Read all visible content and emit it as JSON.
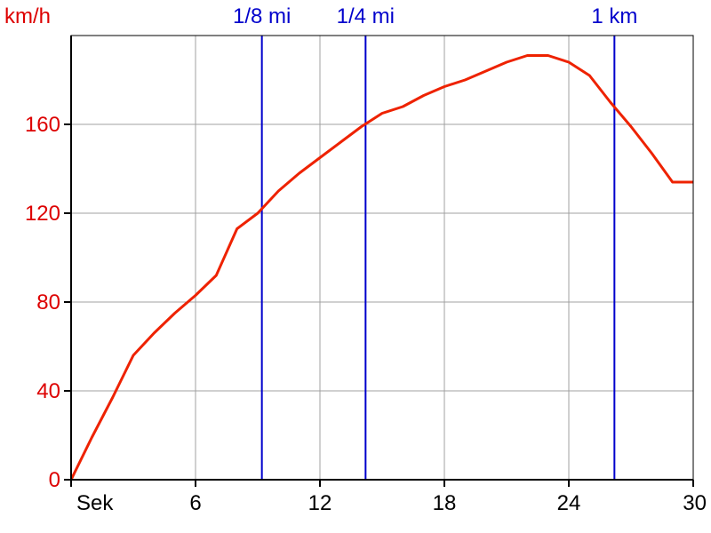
{
  "chart_data": {
    "type": "line",
    "y_unit_label": "km/h",
    "x_unit_label": "Sek",
    "xlim": [
      0,
      30
    ],
    "ylim": [
      0,
      200
    ],
    "x_ticks": [
      {
        "value": 6,
        "label": "6"
      },
      {
        "value": 12,
        "label": "12"
      },
      {
        "value": 18,
        "label": "18"
      },
      {
        "value": 24,
        "label": "24"
      },
      {
        "value": 30,
        "label": "30"
      }
    ],
    "y_ticks": [
      {
        "value": 0,
        "label": "0"
      },
      {
        "value": 40,
        "label": "40"
      },
      {
        "value": 80,
        "label": "80"
      },
      {
        "value": 120,
        "label": "120"
      },
      {
        "value": 160,
        "label": "160"
      }
    ],
    "grid": true,
    "markers": [
      {
        "label": "1/8 mi",
        "x": 9.2
      },
      {
        "label": "1/4 mi",
        "x": 14.2
      },
      {
        "label": "1 km",
        "x": 26.2
      }
    ],
    "series": [
      {
        "color": "#ee2200",
        "points": [
          [
            0,
            0
          ],
          [
            1,
            19
          ],
          [
            2,
            37
          ],
          [
            3,
            56
          ],
          [
            4,
            66
          ],
          [
            5,
            75
          ],
          [
            6,
            83
          ],
          [
            7,
            92
          ],
          [
            8,
            113
          ],
          [
            9,
            120
          ],
          [
            10,
            130
          ],
          [
            11,
            138
          ],
          [
            12,
            145
          ],
          [
            13,
            152
          ],
          [
            14,
            159
          ],
          [
            15,
            165
          ],
          [
            16,
            168
          ],
          [
            17,
            173
          ],
          [
            18,
            177
          ],
          [
            19,
            180
          ],
          [
            20,
            184
          ],
          [
            21,
            188
          ],
          [
            22,
            191
          ],
          [
            23,
            191
          ],
          [
            24,
            188
          ],
          [
            25,
            182
          ],
          [
            26,
            170
          ],
          [
            27,
            159
          ],
          [
            28,
            147
          ],
          [
            29,
            134
          ],
          [
            30,
            134
          ]
        ]
      }
    ],
    "colors": {
      "axis_labels_y": "#dd0000",
      "markers": "#0000cc",
      "grid": "#a0a0a0",
      "axes": "#000000"
    }
  }
}
